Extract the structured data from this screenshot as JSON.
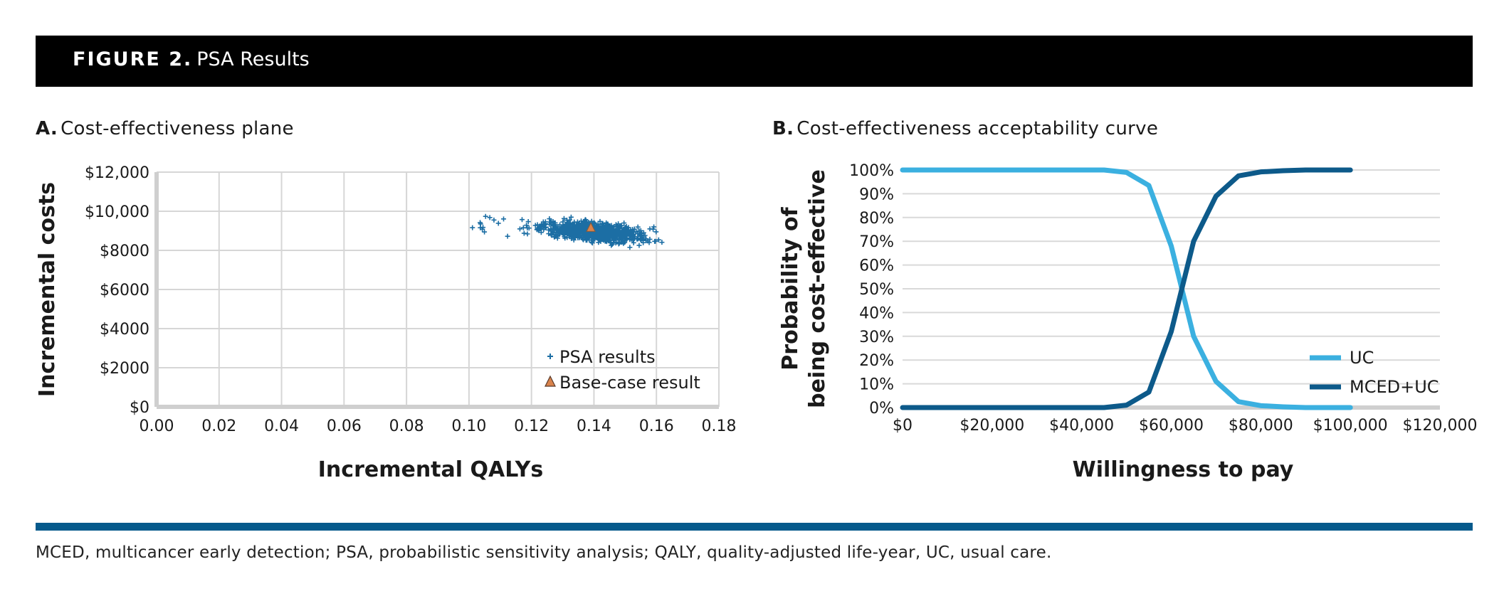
{
  "figure": {
    "label": "FIGURE 2.",
    "title": "PSA Results"
  },
  "colors": {
    "header_bg": "#000000",
    "psa_marker": "#1c6ea4",
    "base_case": "#d9834c",
    "uc_line": "#3bb0e0",
    "mced_line": "#0d5a8a",
    "rule": "#065a8c"
  },
  "chart_data": [
    {
      "id": "A",
      "panel_label": "A.",
      "title": "Cost-effectiveness plane",
      "type": "scatter",
      "xlabel": "Incremental QALYs",
      "ylabel": "Incremental costs",
      "xlim": [
        0,
        0.18
      ],
      "ylim": [
        0,
        12000
      ],
      "x_tick_labels": [
        "0.00",
        "0.02",
        "0.04",
        "0.06",
        "0.08",
        "0.10",
        "0.12",
        "0.14",
        "0.16",
        "0.18"
      ],
      "y_tick_labels": [
        "$0",
        "$2000",
        "$4000",
        "$6000",
        "$8000",
        "$10,000",
        "$12,000"
      ],
      "grid": true,
      "legend_position": "bottom-right",
      "series": [
        {
          "name": "PSA results",
          "marker": "plus",
          "distribution": {
            "x_mean": 0.1405,
            "x_sd": 0.01,
            "y_mean": 8950,
            "y_sd": 220,
            "slope": -11000,
            "n": 900,
            "x_min": 0.101,
            "x_max": 0.171
          }
        },
        {
          "name": "Base-case result",
          "marker": "triangle",
          "x": [
            0.139
          ],
          "y": [
            9150
          ]
        }
      ]
    },
    {
      "id": "B",
      "panel_label": "B.",
      "title": "Cost-effectiveness acceptability curve",
      "type": "line",
      "xlabel": "Willingness to pay",
      "ylabel_lines": [
        "Probability of",
        "being cost-effective"
      ],
      "xlim": [
        0,
        120000
      ],
      "ylim": [
        0,
        100
      ],
      "x_tick_labels": [
        "$0",
        "$20,000",
        "$40,000",
        "$60,000",
        "$80,000",
        "$100,000",
        "$120,000"
      ],
      "y_tick_labels": [
        "0%",
        "10%",
        "20%",
        "30%",
        "40%",
        "50%",
        "60%",
        "70%",
        "80%",
        "90%",
        "100%"
      ],
      "grid": true,
      "legend_position": "bottom-right",
      "x": [
        0,
        5000,
        10000,
        15000,
        20000,
        25000,
        30000,
        35000,
        40000,
        45000,
        50000,
        55000,
        60000,
        65000,
        70000,
        75000,
        80000,
        85000,
        90000,
        95000,
        100000
      ],
      "series": [
        {
          "name": "UC",
          "values": [
            100,
            100,
            100,
            100,
            100,
            100,
            100,
            100,
            100,
            100,
            99,
            93.5,
            68,
            30,
            11,
            2.5,
            0.8,
            0.3,
            0,
            0,
            0
          ]
        },
        {
          "name": "MCED+UC",
          "values": [
            0,
            0,
            0,
            0,
            0,
            0,
            0,
            0,
            0,
            0,
            1,
            6.5,
            32,
            70,
            89,
            97.5,
            99.2,
            99.7,
            100,
            100,
            100
          ]
        }
      ]
    }
  ],
  "footnote": "MCED, multicancer early detection; PSA, probabilistic sensitivity analysis; QALY, quality-adjusted life-year, UC, usual care."
}
